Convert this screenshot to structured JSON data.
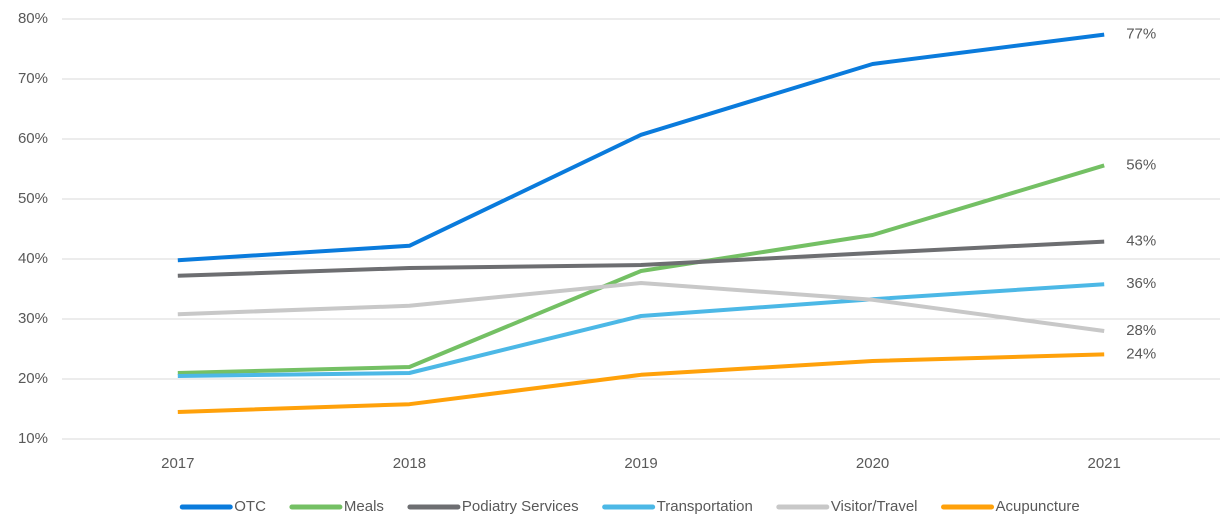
{
  "chart_data": {
    "type": "line",
    "categories": [
      "2017",
      "2018",
      "2019",
      "2020",
      "2021"
    ],
    "series": [
      {
        "name": "OTC",
        "color": "#0a7bdc",
        "values": [
          39.8,
          42.2,
          60.7,
          72.5,
          77.4
        ],
        "value_labels": [
          null,
          null,
          null,
          null,
          "77%"
        ]
      },
      {
        "name": "Meals",
        "color": "#74c064",
        "values": [
          21,
          22,
          38,
          44,
          55.6
        ],
        "value_labels": [
          null,
          null,
          null,
          null,
          "56%"
        ]
      },
      {
        "name": "Podiatry Services",
        "color": "#6d6e71",
        "values": [
          37.2,
          38.5,
          39,
          41,
          42.9
        ],
        "value_labels": [
          null,
          null,
          null,
          null,
          "43%"
        ]
      },
      {
        "name": "Transportation",
        "color": "#4cb8e6",
        "values": [
          20.5,
          21,
          30.5,
          33.3,
          35.8
        ],
        "value_labels": [
          null,
          null,
          null,
          null,
          "36%"
        ]
      },
      {
        "name": "Visitor/Travel",
        "color": "#c8c8c8",
        "values": [
          30.8,
          32.2,
          36,
          33.2,
          28
        ],
        "value_labels": [
          null,
          null,
          null,
          null,
          "28%"
        ]
      },
      {
        "name": "Acupuncture",
        "color": "#ffa10a",
        "values": [
          14.5,
          15.8,
          20.7,
          23,
          24.1
        ],
        "value_labels": [
          null,
          null,
          null,
          null,
          "24%"
        ]
      }
    ],
    "ylim": [
      10,
      80
    ],
    "yticks": [
      {
        "value": 10,
        "label": "10%"
      },
      {
        "value": 20,
        "label": "20%"
      },
      {
        "value": 30,
        "label": "30%"
      },
      {
        "value": 40,
        "label": "40%"
      },
      {
        "value": 50,
        "label": "50%"
      },
      {
        "value": 60,
        "label": "60%"
      },
      {
        "value": 70,
        "label": "70%"
      },
      {
        "value": 80,
        "label": "80%"
      }
    ],
    "grid": true,
    "legend": "bottom"
  }
}
